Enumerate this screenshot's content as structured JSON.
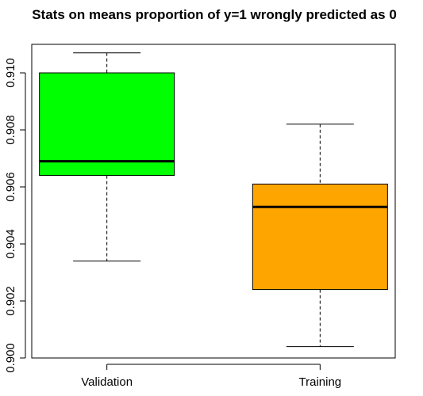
{
  "chart_data": {
    "type": "boxplot",
    "title": "Stats on means proportion of y=1 wrongly predicted as 0",
    "xlabel": "",
    "ylabel": "",
    "ylim": [
      0.9,
      0.911
    ],
    "yticks": [
      0.9,
      0.902,
      0.904,
      0.906,
      0.908,
      0.91
    ],
    "ytick_labels": [
      "0.900",
      "0.902",
      "0.904",
      "0.906",
      "0.908",
      "0.910"
    ],
    "grid": false,
    "legend": "none",
    "boxes": [
      {
        "label": "Validation",
        "color": "#00FF00",
        "whisker_low": 0.9034,
        "q1": 0.9064,
        "median": 0.9069,
        "q3": 0.91,
        "whisker_high": 0.9107
      },
      {
        "label": "Training",
        "color": "#FFA500",
        "whisker_low": 0.9004,
        "q1": 0.9024,
        "median": 0.9053,
        "q3": 0.9061,
        "whisker_high": 0.9082
      }
    ]
  }
}
